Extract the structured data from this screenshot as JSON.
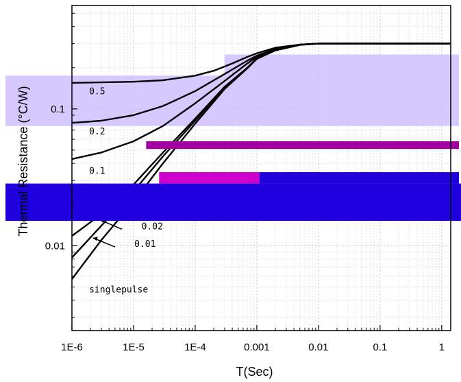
{
  "chart_data": {
    "type": "line",
    "xlabel": "T(Sec)",
    "ylabel": "Thermal Resistance (°C/W)",
    "xscale": "log",
    "yscale": "log",
    "xlim": [
      1e-06,
      1.4
    ],
    "ylim": [
      0.0024,
      0.57
    ],
    "grid": true,
    "x_ticks": [
      {
        "value": 1e-06,
        "label": "1E-6"
      },
      {
        "value": 1e-05,
        "label": "1E-5"
      },
      {
        "value": 0.0001,
        "label": "1E-4"
      },
      {
        "value": 0.001,
        "label": "0.001"
      },
      {
        "value": 0.01,
        "label": "0.01"
      },
      {
        "value": 0.1,
        "label": "0.1"
      },
      {
        "value": 1,
        "label": "1"
      }
    ],
    "y_ticks": [
      {
        "value": 0.01,
        "label": "0.01"
      },
      {
        "value": 0.1,
        "label": "0.1"
      }
    ],
    "steady_state": 0.3,
    "series": [
      {
        "name": "0.5",
        "label_at": [
          1.2e-06,
          0.128
        ],
        "leader": null,
        "points": [
          [
            1e-06,
            0.155
          ],
          [
            1e-05,
            0.158
          ],
          [
            3e-05,
            0.162
          ],
          [
            0.0001,
            0.175
          ],
          [
            0.0002,
            0.19
          ],
          [
            0.0004,
            0.215
          ],
          [
            0.0007,
            0.24
          ],
          [
            0.001,
            0.255
          ],
          [
            0.002,
            0.28
          ],
          [
            0.005,
            0.295
          ],
          [
            0.01,
            0.3
          ],
          [
            1.4,
            0.3
          ]
        ]
      },
      {
        "name": "0.2",
        "label_at": [
          1.2e-06,
          0.065
        ],
        "leader": null,
        "points": [
          [
            1e-06,
            0.079
          ],
          [
            3e-06,
            0.082
          ],
          [
            1e-05,
            0.09
          ],
          [
            3e-05,
            0.105
          ],
          [
            0.0001,
            0.135
          ],
          [
            0.0003,
            0.18
          ],
          [
            0.0007,
            0.225
          ],
          [
            0.001,
            0.245
          ],
          [
            0.002,
            0.275
          ],
          [
            0.005,
            0.295
          ],
          [
            0.01,
            0.3
          ],
          [
            1.4,
            0.3
          ]
        ]
      },
      {
        "name": "0.1",
        "label_at": [
          1.2e-06,
          0.0335
        ],
        "leader": null,
        "points": [
          [
            1e-06,
            0.043
          ],
          [
            3e-06,
            0.048
          ],
          [
            1e-05,
            0.058
          ],
          [
            3e-05,
            0.075
          ],
          [
            0.0001,
            0.11
          ],
          [
            0.0003,
            0.16
          ],
          [
            0.0007,
            0.215
          ],
          [
            0.001,
            0.24
          ],
          [
            0.002,
            0.272
          ],
          [
            0.005,
            0.295
          ],
          [
            0.01,
            0.3
          ],
          [
            1.4,
            0.3
          ]
        ]
      },
      {
        "name": "0.02",
        "label_at": [
          8.5e-06,
          0.0132
        ],
        "leader": [
          [
            6.5e-06,
            0.0132
          ],
          [
            2.8e-06,
            0.0155
          ]
        ],
        "points": [
          [
            1e-06,
            0.0118
          ],
          [
            3e-06,
            0.017
          ],
          [
            1e-05,
            0.028
          ],
          [
            3e-05,
            0.048
          ],
          [
            0.0001,
            0.085
          ],
          [
            0.0003,
            0.145
          ],
          [
            0.0007,
            0.2
          ],
          [
            0.001,
            0.235
          ],
          [
            0.002,
            0.27
          ],
          [
            0.005,
            0.295
          ],
          [
            0.01,
            0.3
          ],
          [
            1.4,
            0.3
          ]
        ]
      },
      {
        "name": "0.01",
        "label_at": [
          6.5e-06,
          0.0098
        ],
        "leader": [
          [
            5e-06,
            0.0098
          ],
          [
            2.2e-06,
            0.0114
          ]
        ],
        "points": [
          [
            1e-06,
            0.0082
          ],
          [
            3e-06,
            0.014
          ],
          [
            1e-05,
            0.025
          ],
          [
            3e-05,
            0.045
          ],
          [
            0.0001,
            0.082
          ],
          [
            0.0003,
            0.143
          ],
          [
            0.0007,
            0.2
          ],
          [
            0.001,
            0.233
          ],
          [
            0.002,
            0.268
          ],
          [
            0.005,
            0.294
          ],
          [
            0.01,
            0.3
          ],
          [
            1.4,
            0.3
          ]
        ]
      },
      {
        "name": "singlepulse",
        "label_at": [
          1.2e-06,
          0.00455
        ],
        "leader": null,
        "points": [
          [
            1e-06,
            0.0057
          ],
          [
            3e-06,
            0.011
          ],
          [
            1e-05,
            0.021
          ],
          [
            3e-05,
            0.04
          ],
          [
            0.0001,
            0.078
          ],
          [
            0.0003,
            0.14
          ],
          [
            0.0007,
            0.198
          ],
          [
            0.001,
            0.232
          ],
          [
            0.002,
            0.268
          ],
          [
            0.005,
            0.294
          ],
          [
            0.01,
            0.3
          ],
          [
            1.4,
            0.3
          ]
        ]
      }
    ]
  },
  "colors": {
    "curve": "#000000",
    "highlight_blue": "#2200dd",
    "highlight_lavender": "#cfc0ff",
    "highlight_magenta": "#a000a0",
    "label_blue": "#00007a"
  }
}
